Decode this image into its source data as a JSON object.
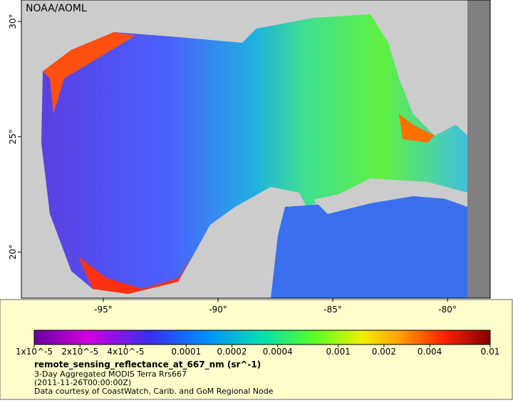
{
  "map": {
    "watermark": "NOAA/AOML",
    "lonlim": [
      -98.57,
      -78.14
    ],
    "latlim": [
      18.0,
      30.93
    ],
    "lon_ticks": [
      {
        "value": -95,
        "label": "-95°"
      },
      {
        "value": -90,
        "label": "-90°"
      },
      {
        "value": -85,
        "label": "-85°"
      },
      {
        "value": -80,
        "label": "-80°"
      }
    ],
    "lat_ticks": [
      {
        "value": 30,
        "label": "30°"
      },
      {
        "value": 25,
        "label": "25°"
      },
      {
        "value": 20,
        "label": "20°"
      }
    ]
  },
  "colorbar": {
    "scale": "log",
    "lim": [
      1e-05,
      0.01
    ],
    "ticks": [
      {
        "value": 1e-05,
        "label": "1x10^-5"
      },
      {
        "value": 2e-05,
        "label": "2x10^-5"
      },
      {
        "value": 4e-05,
        "label": "4x10^-5"
      },
      0.0001,
      0.0002,
      0.0004,
      0.001,
      0.002,
      0.004,
      0.01
    ]
  },
  "caption": {
    "title": "remote_sensing_reflectance_at_667_nm (sr^-1)",
    "lines": [
      "3-Day Aggregated MODIS Terra Rrs667",
      "(2011-11-26T00:00:00Z)",
      "Data courtesy of CoastWatch, Carib. and GoM Regional Node"
    ]
  }
}
